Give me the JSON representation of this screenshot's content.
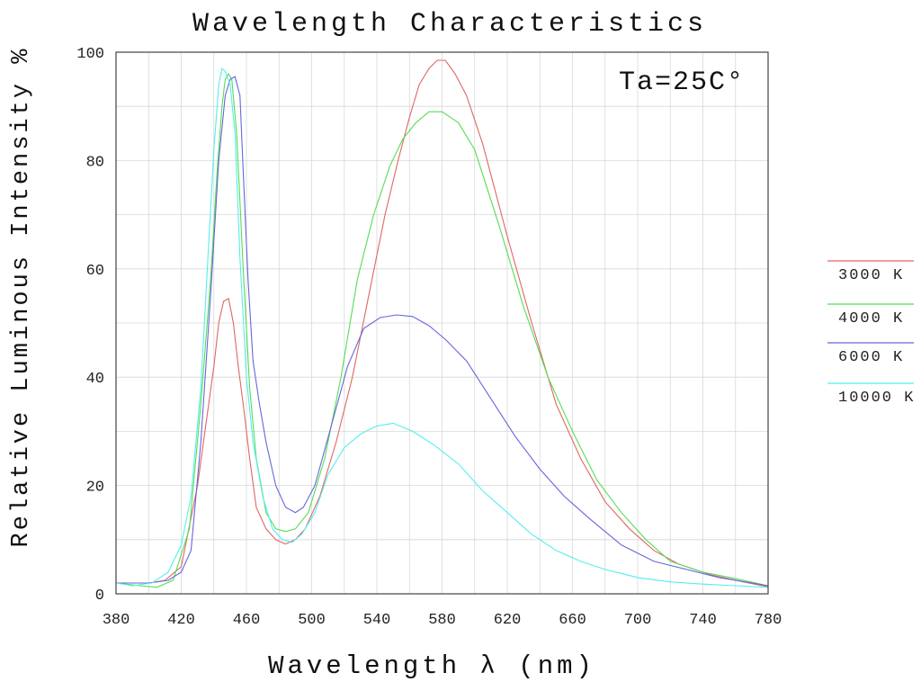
{
  "chart_data": {
    "type": "line",
    "title": "Wavelength Characteristics",
    "xlabel": "Wavelength λ (nm)",
    "ylabel": "Relative Luminous Intensity %",
    "annotation": "Ta=25C°",
    "xlim": [
      380,
      780
    ],
    "ylim": [
      0,
      100
    ],
    "xticks": [
      380,
      420,
      460,
      500,
      540,
      580,
      620,
      660,
      700,
      740,
      780
    ],
    "yticks": [
      0,
      20,
      40,
      60,
      80,
      100
    ],
    "grid": true,
    "legend_position": "right",
    "series": [
      {
        "name": "3000 K",
        "color": "#e06666",
        "points": [
          [
            380,
            2
          ],
          [
            400,
            2
          ],
          [
            410,
            2.5
          ],
          [
            420,
            5
          ],
          [
            430,
            20
          ],
          [
            440,
            42
          ],
          [
            443,
            50
          ],
          [
            446,
            54
          ],
          [
            449,
            54.5
          ],
          [
            452,
            50
          ],
          [
            455,
            42
          ],
          [
            458,
            35
          ],
          [
            462,
            25
          ],
          [
            466,
            16
          ],
          [
            472,
            12
          ],
          [
            478,
            10
          ],
          [
            484,
            9.2
          ],
          [
            490,
            10
          ],
          [
            496,
            12
          ],
          [
            505,
            18
          ],
          [
            515,
            28
          ],
          [
            525,
            40
          ],
          [
            535,
            55
          ],
          [
            545,
            70
          ],
          [
            553,
            80
          ],
          [
            560,
            88
          ],
          [
            566,
            94
          ],
          [
            572,
            97
          ],
          [
            577,
            98.5
          ],
          [
            582,
            98.5
          ],
          [
            588,
            96
          ],
          [
            595,
            92
          ],
          [
            605,
            83
          ],
          [
            620,
            66
          ],
          [
            635,
            50
          ],
          [
            650,
            35
          ],
          [
            665,
            25
          ],
          [
            680,
            17
          ],
          [
            695,
            12
          ],
          [
            710,
            8
          ],
          [
            725,
            5.5
          ],
          [
            745,
            3.5
          ],
          [
            765,
            2.2
          ],
          [
            780,
            1.3
          ]
        ]
      },
      {
        "name": "4000 K",
        "color": "#55dd55",
        "points": [
          [
            380,
            2
          ],
          [
            395,
            1.5
          ],
          [
            405,
            1.2
          ],
          [
            415,
            2.5
          ],
          [
            425,
            12
          ],
          [
            432,
            35
          ],
          [
            438,
            58
          ],
          [
            442,
            78
          ],
          [
            445,
            90
          ],
          [
            447,
            95
          ],
          [
            449,
            96
          ],
          [
            451,
            95
          ],
          [
            454,
            85
          ],
          [
            458,
            60
          ],
          [
            462,
            38
          ],
          [
            466,
            25
          ],
          [
            472,
            15
          ],
          [
            478,
            12
          ],
          [
            484,
            11.5
          ],
          [
            490,
            12
          ],
          [
            498,
            15
          ],
          [
            508,
            25
          ],
          [
            518,
            40
          ],
          [
            528,
            58
          ],
          [
            538,
            70
          ],
          [
            548,
            79
          ],
          [
            556,
            84
          ],
          [
            564,
            87
          ],
          [
            572,
            89
          ],
          [
            580,
            89
          ],
          [
            590,
            87
          ],
          [
            600,
            82
          ],
          [
            615,
            68
          ],
          [
            630,
            53
          ],
          [
            645,
            40
          ],
          [
            660,
            30
          ],
          [
            675,
            21
          ],
          [
            690,
            15
          ],
          [
            705,
            10
          ],
          [
            720,
            6
          ],
          [
            740,
            4
          ],
          [
            760,
            2.8
          ],
          [
            780,
            1.5
          ]
        ]
      },
      {
        "name": "6000 K",
        "color": "#6666dd",
        "points": [
          [
            380,
            2
          ],
          [
            400,
            2
          ],
          [
            412,
            2.5
          ],
          [
            420,
            4
          ],
          [
            426,
            8
          ],
          [
            432,
            28
          ],
          [
            438,
            55
          ],
          [
            443,
            80
          ],
          [
            447,
            92
          ],
          [
            450,
            95
          ],
          [
            453,
            95.5
          ],
          [
            456,
            92
          ],
          [
            458,
            78
          ],
          [
            461,
            58
          ],
          [
            464,
            43
          ],
          [
            468,
            35
          ],
          [
            472,
            28
          ],
          [
            478,
            20
          ],
          [
            484,
            16
          ],
          [
            490,
            15
          ],
          [
            495,
            16
          ],
          [
            502,
            20
          ],
          [
            512,
            31
          ],
          [
            522,
            42
          ],
          [
            532,
            49
          ],
          [
            542,
            51
          ],
          [
            552,
            51.5
          ],
          [
            562,
            51.2
          ],
          [
            572,
            49.5
          ],
          [
            582,
            47
          ],
          [
            595,
            43
          ],
          [
            610,
            36
          ],
          [
            625,
            29
          ],
          [
            640,
            23
          ],
          [
            655,
            18
          ],
          [
            670,
            14
          ],
          [
            690,
            9
          ],
          [
            710,
            6
          ],
          [
            730,
            4.5
          ],
          [
            750,
            3
          ],
          [
            780,
            1.5
          ]
        ]
      },
      {
        "name": "10000 K",
        "color": "#55eeee",
        "points": [
          [
            380,
            2
          ],
          [
            390,
            1.5
          ],
          [
            402,
            2
          ],
          [
            412,
            4
          ],
          [
            420,
            9
          ],
          [
            426,
            18
          ],
          [
            432,
            38
          ],
          [
            436,
            60
          ],
          [
            440,
            82
          ],
          [
            443,
            94
          ],
          [
            445,
            97
          ],
          [
            447,
            96.5
          ],
          [
            450,
            94
          ],
          [
            453,
            85
          ],
          [
            456,
            62
          ],
          [
            460,
            40
          ],
          [
            464,
            28
          ],
          [
            470,
            18
          ],
          [
            476,
            12
          ],
          [
            482,
            10
          ],
          [
            488,
            9.5
          ],
          [
            494,
            11
          ],
          [
            502,
            15
          ],
          [
            510,
            22
          ],
          [
            520,
            27
          ],
          [
            530,
            29.5
          ],
          [
            540,
            31
          ],
          [
            550,
            31.5
          ],
          [
            562,
            30
          ],
          [
            575,
            27.5
          ],
          [
            590,
            24
          ],
          [
            605,
            19
          ],
          [
            620,
            15
          ],
          [
            635,
            11
          ],
          [
            650,
            8
          ],
          [
            665,
            6
          ],
          [
            680,
            4.5
          ],
          [
            700,
            3
          ],
          [
            720,
            2.2
          ],
          [
            740,
            1.8
          ],
          [
            760,
            1.5
          ],
          [
            780,
            1.2
          ]
        ]
      }
    ]
  }
}
